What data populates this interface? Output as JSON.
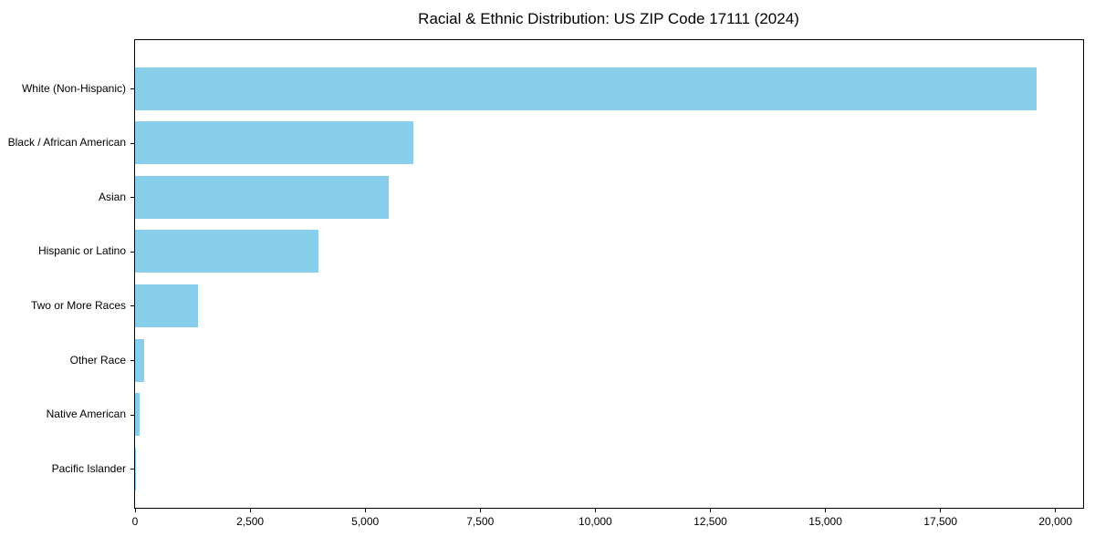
{
  "chart_data": {
    "type": "bar",
    "orientation": "horizontal",
    "title": "Racial & Ethnic Distribution: US ZIP Code 17111 (2024)",
    "categories": [
      "White (Non-Hispanic)",
      "Black / African American",
      "Asian",
      "Hispanic or Latino",
      "Two or More Races",
      "Other Race",
      "Native American",
      "Pacific Islander"
    ],
    "values": [
      19590,
      6050,
      5510,
      3990,
      1360,
      200,
      100,
      15
    ],
    "xlabel": "",
    "ylabel": "",
    "xlim": [
      0,
      20600
    ],
    "x_ticks": [
      0,
      2500,
      5000,
      7500,
      10000,
      12500,
      15000,
      17500,
      20000
    ],
    "x_tick_labels": [
      "0",
      "2,500",
      "5,000",
      "7,500",
      "10,000",
      "12,500",
      "15,000",
      "17,500",
      "20,000"
    ],
    "bar_color": "#87CEEB",
    "background_color": "#FFFFFF",
    "spine_color": "#000000",
    "grid": false,
    "legend": false
  }
}
